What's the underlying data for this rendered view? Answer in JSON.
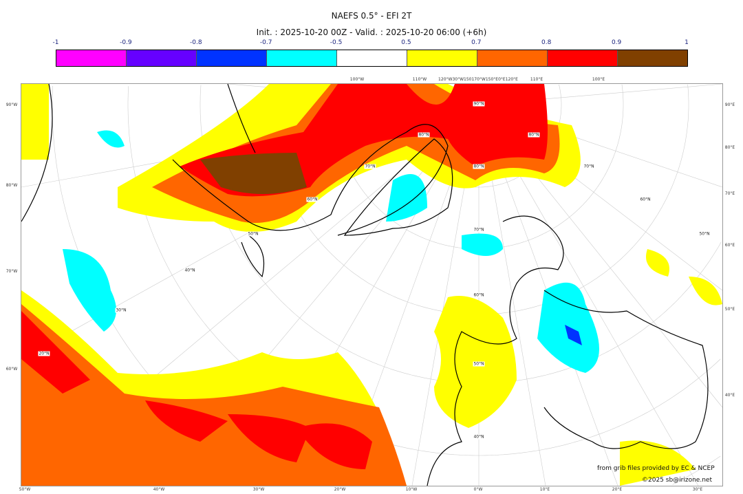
{
  "title": "NAEFS 0.5° - EFI 2T",
  "subtitle": "Init. : 2025-10-20 00Z - Valid. : 2025-10-20 06:00 (+6h)",
  "colorbar": {
    "ticks": [
      "-1",
      "-0.9",
      "-0.8",
      "-0.7",
      "-0.5",
      "0.5",
      "0.7",
      "0.8",
      "0.9",
      "1"
    ],
    "colors": [
      "#ff00ff",
      "#6600ff",
      "#0033ff",
      "#00ffff",
      "#ffffff",
      "#ffff00",
      "#ff6600",
      "#ff0000",
      "#804000"
    ]
  },
  "map": {
    "top_labels": [
      "100°W",
      "110°W",
      "120°W30°W150170°W150°E0°E120°E",
      "110°E",
      "100°E"
    ],
    "left_labels": [
      "90°W",
      "80°W",
      "70°W",
      "60°W"
    ],
    "right_labels": [
      "90°E",
      "80°E",
      "70°E",
      "60°E",
      "50°E",
      "40°E"
    ],
    "bottom_labels": [
      "50°W",
      "40°W",
      "30°W",
      "20°W",
      "10°W",
      "0°W",
      "10°E",
      "20°E",
      "30°E"
    ],
    "lat_labels": [
      "90°N",
      "80°N",
      "80°N",
      "80°N",
      "70°N",
      "70°N",
      "70°N",
      "60°N",
      "60°N",
      "60°N",
      "50°N",
      "50°N",
      "50°N",
      "40°N",
      "40°N",
      "30°N",
      "20°N"
    ]
  },
  "credits": {
    "source": "from grib files provided by EC & NCEP",
    "copyright": "©2025 sb@irizone.net"
  }
}
